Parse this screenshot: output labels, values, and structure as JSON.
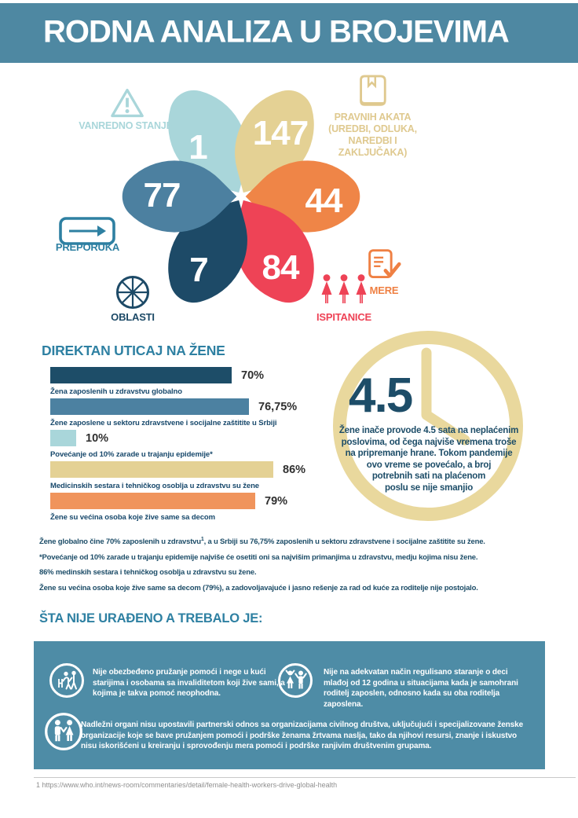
{
  "header": {
    "title": "RODNA ANALIZA U BROJEVIMA"
  },
  "palette": {
    "header_teal": "#4e88a2",
    "box_teal": "#4e8ca6",
    "heading_teal": "#2e80a2",
    "text_navy": "#1d4d68",
    "clock_ring_tan": "#e9d89d",
    "light_cyan": "#a9d6da",
    "tan": "#e4d194",
    "orange": "#ef8547",
    "red": "#ee4356",
    "navy": "#1d4a67",
    "steel_blue": "#4c80a0"
  },
  "chart_data": [
    {
      "type": "bar",
      "title": "DIREKTAN UTICAJ NA ŽENE",
      "orientation": "horizontal",
      "categories": [
        "Žena zaposlenih u zdravstvu globalno",
        "Žene zaposlene u sektoru zdravstvene i socijalne zaštitite u Srbiji",
        "Povećanje od 10% zarade u trajanju epidemije*",
        "Medicinskih sestara i tehničkog osoblja u zdravstvu su žene",
        "Žene su većina osoba koje žive same sa decom"
      ],
      "values": [
        70,
        76.75,
        10,
        86,
        79
      ],
      "value_labels": [
        "70%",
        "76,75%",
        "10%",
        "86%",
        "79%"
      ],
      "colors": [
        "#1d4d68",
        "#4c81a1",
        "#a9d6da",
        "#e4d194",
        "#f0945c"
      ],
      "xlim": [
        0,
        100
      ],
      "grid": false,
      "legend": false
    },
    {
      "type": "pie",
      "note": "six-petal flower diagram showing counts",
      "categories": [
        "VANREDNO STANJE",
        "PRAVNIH AKATA (UREDBI, ODLUKA, NAREDBI I ZAKLJUČAKA)",
        "MERE",
        "ISPITANICE",
        "OBLASTI",
        "PREPORUKA"
      ],
      "values": [
        1,
        147,
        44,
        84,
        7,
        77
      ],
      "colors": [
        "#a9d6da",
        "#e4d194",
        "#ef8547",
        "#ee4356",
        "#1d4a67",
        "#4c80a0"
      ],
      "icons": [
        "warning-triangle",
        "book",
        "checklist",
        "three-women",
        "wheel",
        "arrow-right-box"
      ]
    }
  ],
  "clock": {
    "big_number": "4.5",
    "lines": [
      "Žene inače provode 4.5 sata na neplaćenim",
      "poslovima, od čega najviše vremena troše",
      "na pripremanje hrane. Tokom pandemije",
      "ovo vreme se povećalo, a broj",
      "potrebnih sati na plaćenom",
      "poslu se nije smanjio"
    ]
  },
  "notes": {
    "line1a": "Žene globalno čine 70% zaposlenih u zdravstvu",
    "line1_sup": "1",
    "line1b": ", a u Srbiji su 76,75% zaposlenih u sektoru zdravstvene i socijalne zaštitite su žene.",
    "line2": "*Povećanje od 10% zarade u trajanju epidemije najviše će osetiti oni sa najvišim primanjima u zdravstvu, medju kojima nisu žene.",
    "line3": "86% medinskih sestara i tehničkog osoblja u zdravstvu su žene.",
    "line4": "Žene su većina osoba koje žive same sa decom (79%), a zadovoljavajuće i jasno rešenje za rad od kuće za roditelje nije postojalo."
  },
  "todo_section": {
    "heading": "ŠTA NIJE URAĐENO A TREBALO JE:",
    "items": [
      {
        "icon": "elderly-care",
        "text": "Nije obezbeđeno pružanje pomoći i nege u kući starijima i osobama sa invaliditetom koji žive sami, a kojima je takva pomoć neophodna."
      },
      {
        "icon": "children",
        "text": "Nije na adekvatan način regulisano staranje o deci mlađoj od 12 godina u situacijama kada je samohrani roditelj zaposlen, odnosno kada su oba roditelja zaposlena."
      },
      {
        "icon": "partnership",
        "text": "Nadležni organi nisu upostavili partnerski odnos sa organizacijama civilnog društva, uključujući i specijalizovane ženske organizacije koje se bave pružanjem pomoći i podrške ženama žrtvama naslja, tako da njihovi resursi, znanje i iskustvo nisu iskorišćeni u kreiranju i sprovođenju mera pomoći i podrške ranjivim društvenim grupama."
      }
    ]
  },
  "footer": {
    "footnote": "1 https://www.who.int/news-room/commentaries/detail/female-health-workers-drive-global-health"
  }
}
